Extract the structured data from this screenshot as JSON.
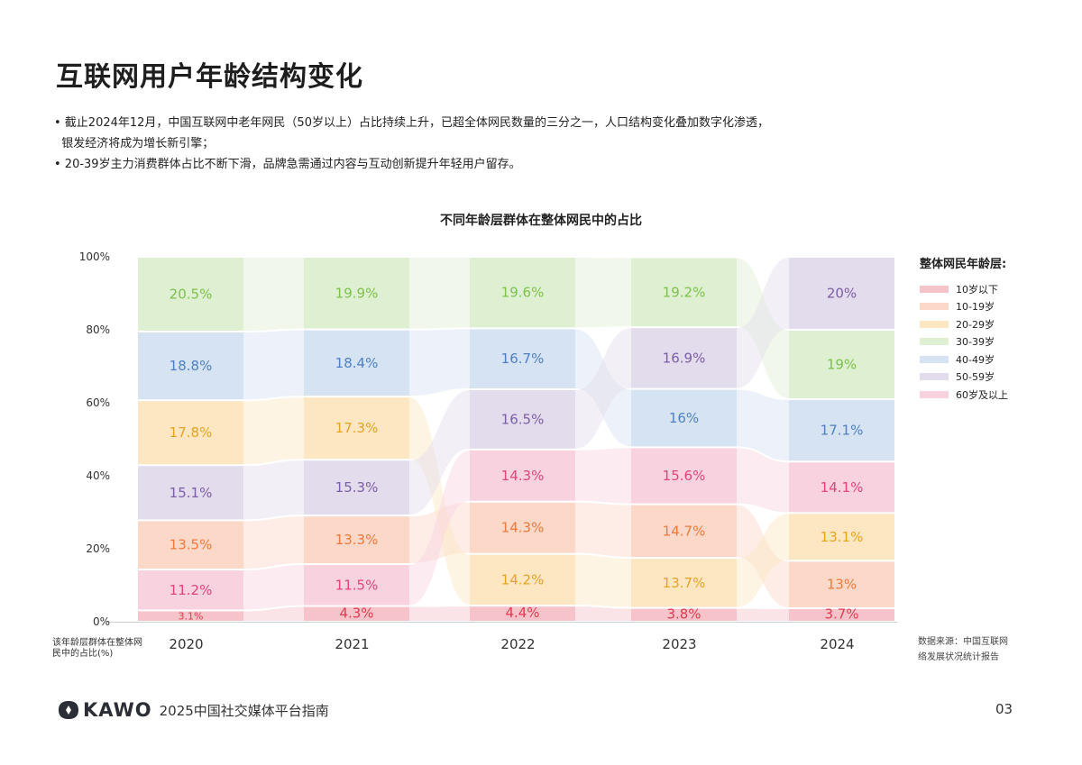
{
  "header": {
    "title": "互联网用户年龄结构变化"
  },
  "bullets": [
    "• 截止2024年12月，中国互联网中老年网民（50岁以上）占比持续上升，已超全体网民数量的三分之一，人口结构变化叠加数字化渗透，",
    "  银发经济将成为增长新引擎；",
    "• 20-39岁主力消费群体占比不断下滑，品牌急需通过内容与互动创新提升年轻用户留存。"
  ],
  "chart_data": {
    "type": "bar",
    "subtype": "stacked ribbon (sorted per year)",
    "title": "不同年龄层群体在整体网民中的占比",
    "categories": [
      "2020",
      "2021",
      "2022",
      "2023",
      "2024"
    ],
    "ylabel": "该年龄层群体在整体网民中的占比(%)",
    "ylim": [
      0,
      100
    ],
    "yticks": [
      "0%",
      "20%",
      "40%",
      "60%",
      "80%",
      "100%"
    ],
    "legend_title": "整体网民年龄层:",
    "legend_position": "right",
    "series": [
      {
        "name": "10岁以下",
        "values": [
          3.1,
          4.3,
          4.4,
          3.8,
          3.7
        ],
        "labels": [
          "3.1%",
          "4.3%",
          "4.4%",
          "3.8%",
          "3.7%"
        ],
        "color": "#f6c3cb",
        "text": "#e23a4e"
      },
      {
        "name": "10-19岁",
        "values": [
          13.5,
          13.3,
          14.3,
          14.7,
          13
        ],
        "labels": [
          "13.5%",
          "13.3%",
          "14.3%",
          "14.7%",
          "13%"
        ],
        "color": "#fbd8c8",
        "text": "#ee7a3c"
      },
      {
        "name": "20-29岁",
        "values": [
          17.8,
          17.3,
          14.2,
          13.7,
          13.1
        ],
        "labels": [
          "17.8%",
          "17.3%",
          "14.2%",
          "13.7%",
          "13.1%"
        ],
        "color": "#fce7c2",
        "text": "#e9a323"
      },
      {
        "name": "30-39岁",
        "values": [
          20.5,
          19.9,
          19.6,
          19.2,
          19
        ],
        "labels": [
          "20.5%",
          "19.9%",
          "19.6%",
          "19.2%",
          "19%"
        ],
        "color": "#dff0d2",
        "text": "#7cc14b"
      },
      {
        "name": "40-49岁",
        "values": [
          18.8,
          18.4,
          16.7,
          16,
          17.1
        ],
        "labels": [
          "18.8%",
          "18.4%",
          "16.7%",
          "16%",
          "17.1%"
        ],
        "color": "#d6e3f3",
        "text": "#4f81c2"
      },
      {
        "name": "50-59岁",
        "values": [
          15.1,
          15.3,
          16.5,
          16.9,
          20
        ],
        "labels": [
          "15.1%",
          "15.3%",
          "16.5%",
          "16.9%",
          "20%"
        ],
        "color": "#e3dcec",
        "text": "#7c5ea8"
      },
      {
        "name": "60岁及以上",
        "values": [
          11.2,
          11.5,
          14.3,
          15.6,
          14.1
        ],
        "labels": [
          "11.2%",
          "11.5%",
          "14.3%",
          "15.6%",
          "14.1%"
        ],
        "color": "#f9d2e0",
        "text": "#e0457c"
      }
    ]
  },
  "source": [
    "数据来源：中国互联网",
    "络发展状况统计报告"
  ],
  "footer": {
    "logo": "KAWO",
    "text": "2025中国社交媒体平台指南",
    "page": "03"
  }
}
